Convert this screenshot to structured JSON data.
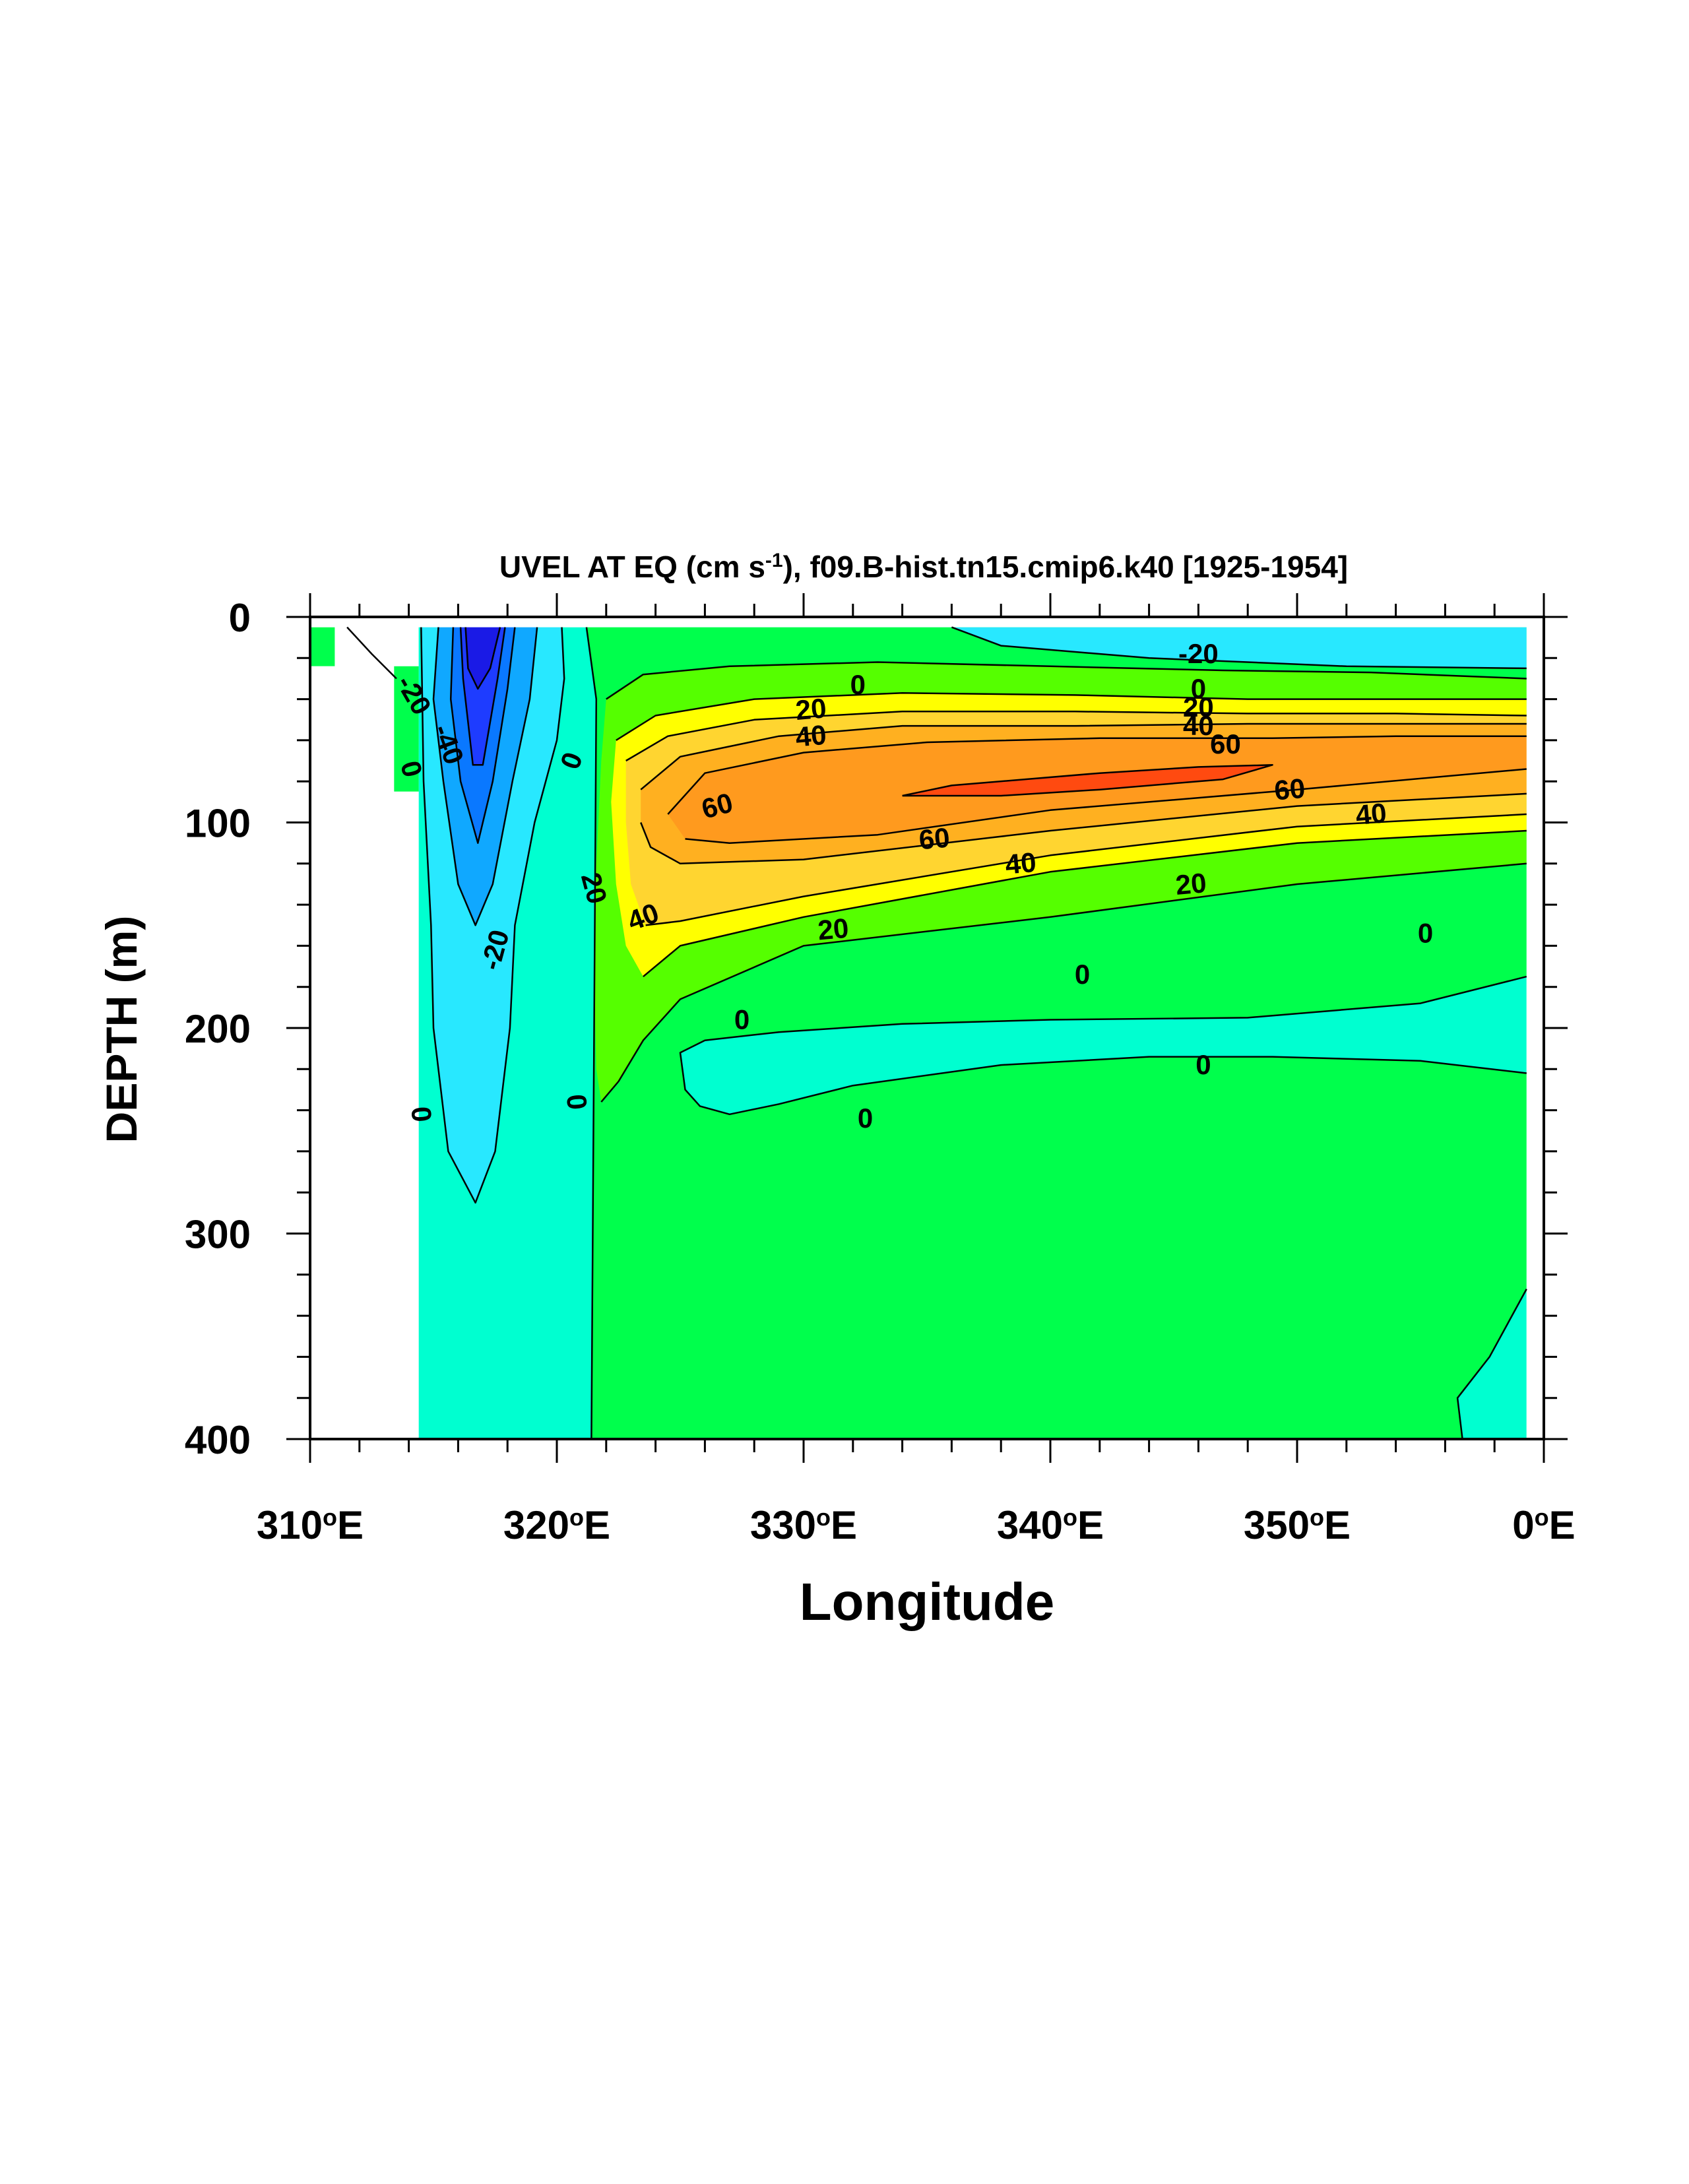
{
  "chart_data": {
    "type": "contour",
    "title_main": "UVEL AT EQ (cm s",
    "title_sup": "-1",
    "title_rest": "), f09.B-hist.tn15.cmip6.k40 [1925-1954]",
    "xlabel": "Longitude",
    "ylabel": "DEPTH (m)",
    "x_unit_label": "°E",
    "x_range": [
      310,
      360
    ],
    "y_range": [
      0,
      400
    ],
    "y_inverted": true,
    "x_ticks": [
      {
        "value": 310,
        "num": "310",
        "deg": "o",
        "suffix": "E"
      },
      {
        "value": 320,
        "num": "320",
        "deg": "o",
        "suffix": "E"
      },
      {
        "value": 330,
        "num": "330",
        "deg": "o",
        "suffix": "E"
      },
      {
        "value": 340,
        "num": "340",
        "deg": "o",
        "suffix": "E"
      },
      {
        "value": 350,
        "num": "350",
        "deg": "o",
        "suffix": "E"
      },
      {
        "value": 360,
        "num": "0",
        "deg": "o",
        "suffix": "E"
      }
    ],
    "y_ticks": [
      {
        "value": 0,
        "label": "0"
      },
      {
        "value": 100,
        "label": "100"
      },
      {
        "value": 200,
        "label": "200"
      },
      {
        "value": 300,
        "label": "300"
      },
      {
        "value": 400,
        "label": "400"
      }
    ],
    "contour_interval": 10,
    "levels": [
      -60,
      -50,
      -40,
      -30,
      -20,
      -10,
      0,
      10,
      20,
      30,
      40,
      50,
      60,
      70
    ],
    "colors": {
      "lt_-50": "#1a1ae6",
      "-50_-40": "#1e3cff",
      "-40_-30": "#0a78ff",
      "-30_-20": "#10a8ff",
      "-20_-10": "#28e8ff",
      "-10_0": "#00ffd0",
      "0_10": "#00ff4c",
      "10_20": "#55ff00",
      "20_30": "#ffff00",
      "30_40": "#ffd530",
      "40_50": "#ffb020",
      "50_60": "#ff9a1e",
      "60_70": "#ff4a10"
    },
    "contour_labels": [
      {
        "value": "-20",
        "lon": 314.2,
        "depth": 38,
        "angle": 60
      },
      {
        "value": "-40",
        "lon": 315.6,
        "depth": 62,
        "angle": 70
      },
      {
        "value": "0",
        "lon": 314.1,
        "depth": 74,
        "angle": 75
      },
      {
        "value": "-20",
        "lon": 317.5,
        "depth": 162,
        "angle": -75
      },
      {
        "value": "0",
        "lon": 314.5,
        "depth": 242,
        "angle": 85
      },
      {
        "value": "0",
        "lon": 320.6,
        "depth": 70,
        "angle": -70
      },
      {
        "value": "20",
        "lon": 321.5,
        "depth": 132,
        "angle": 75
      },
      {
        "value": "0",
        "lon": 320.8,
        "depth": 236,
        "angle": 85
      },
      {
        "value": "40",
        "lon": 323.5,
        "depth": 146,
        "angle": -20
      },
      {
        "value": "60",
        "lon": 326.5,
        "depth": 92,
        "angle": -15
      },
      {
        "value": "20",
        "lon": 330.3,
        "depth": 45,
        "angle": -5
      },
      {
        "value": "40",
        "lon": 330.3,
        "depth": 58,
        "angle": -5
      },
      {
        "value": "0",
        "lon": 332.2,
        "depth": 33,
        "angle": 0
      },
      {
        "value": "60",
        "lon": 335.3,
        "depth": 108,
        "angle": -5
      },
      {
        "value": "40",
        "lon": 338.8,
        "depth": 120,
        "angle": -5
      },
      {
        "value": "20",
        "lon": 331.2,
        "depth": 152,
        "angle": -5
      },
      {
        "value": "0",
        "lon": 327.5,
        "depth": 196,
        "angle": 0
      },
      {
        "value": "0",
        "lon": 341.3,
        "depth": 174,
        "angle": 0
      },
      {
        "value": "0",
        "lon": 332.5,
        "depth": 244,
        "angle": 0
      },
      {
        "value": "0",
        "lon": 346.2,
        "depth": 218,
        "angle": 0
      },
      {
        "value": "-20",
        "lon": 346.0,
        "depth": 18,
        "angle": 0
      },
      {
        "value": "0",
        "lon": 346.0,
        "depth": 35,
        "angle": 0
      },
      {
        "value": "20",
        "lon": 346.0,
        "depth": 44,
        "angle": 0
      },
      {
        "value": "40",
        "lon": 346.0,
        "depth": 53,
        "angle": 0
      },
      {
        "value": "60",
        "lon": 347.1,
        "depth": 62,
        "angle": 0
      },
      {
        "value": "60",
        "lon": 349.7,
        "depth": 84,
        "angle": -5
      },
      {
        "value": "40",
        "lon": 353.0,
        "depth": 96,
        "angle": -5
      },
      {
        "value": "20",
        "lon": 345.7,
        "depth": 130,
        "angle": -5
      },
      {
        "value": "0",
        "lon": 355.2,
        "depth": 154,
        "angle": 0
      }
    ]
  }
}
